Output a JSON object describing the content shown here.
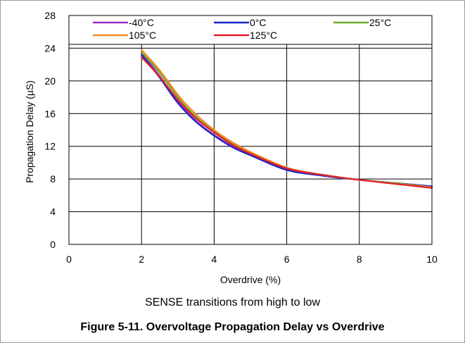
{
  "figure": {
    "subtitle": "SENSE transitions from high to low",
    "caption": "Figure 5-11. Overvoltage Propagation Delay vs Overdrive"
  },
  "chart_data": {
    "type": "line",
    "title": "",
    "xlabel": "Overdrive (%)",
    "ylabel": "Propagation Delay (µS)",
    "xlim": [
      0,
      10
    ],
    "ylim": [
      0,
      28
    ],
    "xticks": [
      0,
      2,
      4,
      6,
      8,
      10
    ],
    "yticks": [
      0,
      4,
      8,
      12,
      16,
      20,
      24,
      28
    ],
    "xtick_labels": [
      "0",
      "2",
      "4",
      "6",
      "8",
      "10"
    ],
    "ytick_labels": [
      "0",
      "4",
      "8",
      "12",
      "16",
      "20",
      "24",
      "28"
    ],
    "grid": true,
    "legend_position": "top",
    "series": [
      {
        "name": "-40°C",
        "color": "#9b30c8",
        "x": [
          2,
          2.5,
          3,
          3.5,
          4,
          4.5,
          5,
          6,
          7,
          8,
          9,
          10
        ],
        "y": [
          23.4,
          20.6,
          17.5,
          15.1,
          13.4,
          12.0,
          11.0,
          9.2,
          8.4,
          7.9,
          7.5,
          7.1
        ]
      },
      {
        "name": "0°C",
        "color": "#1c22c8",
        "x": [
          2,
          2.5,
          3,
          3.5,
          4,
          4.5,
          5,
          6,
          7,
          8,
          9,
          10
        ],
        "y": [
          23.2,
          20.4,
          17.3,
          15.0,
          13.3,
          11.9,
          10.9,
          9.1,
          8.4,
          7.9,
          7.5,
          7.1
        ]
      },
      {
        "name": "25°C",
        "color": "#70a830",
        "x": [
          2,
          2.5,
          3,
          3.5,
          4,
          4.5,
          5,
          6,
          7,
          8,
          9,
          10
        ],
        "y": [
          23.5,
          21.0,
          18.0,
          15.6,
          13.8,
          12.3,
          11.2,
          9.3,
          8.5,
          7.9,
          7.5,
          7.0
        ]
      },
      {
        "name": "105°C",
        "color": "#f08a1e",
        "x": [
          2,
          2.5,
          3,
          3.5,
          4,
          4.5,
          5,
          6,
          7,
          8,
          9,
          10
        ],
        "y": [
          23.8,
          21.3,
          18.3,
          15.9,
          14.0,
          12.5,
          11.3,
          9.4,
          8.5,
          7.9,
          7.4,
          7.0
        ]
      },
      {
        "name": "125°C",
        "color": "#e51e2a",
        "x": [
          2,
          2.5,
          3,
          3.5,
          4,
          4.5,
          5,
          6,
          7,
          8,
          9,
          10
        ],
        "y": [
          22.9,
          20.5,
          17.7,
          15.4,
          13.7,
          12.2,
          11.1,
          9.3,
          8.5,
          7.9,
          7.4,
          6.9
        ]
      }
    ]
  }
}
